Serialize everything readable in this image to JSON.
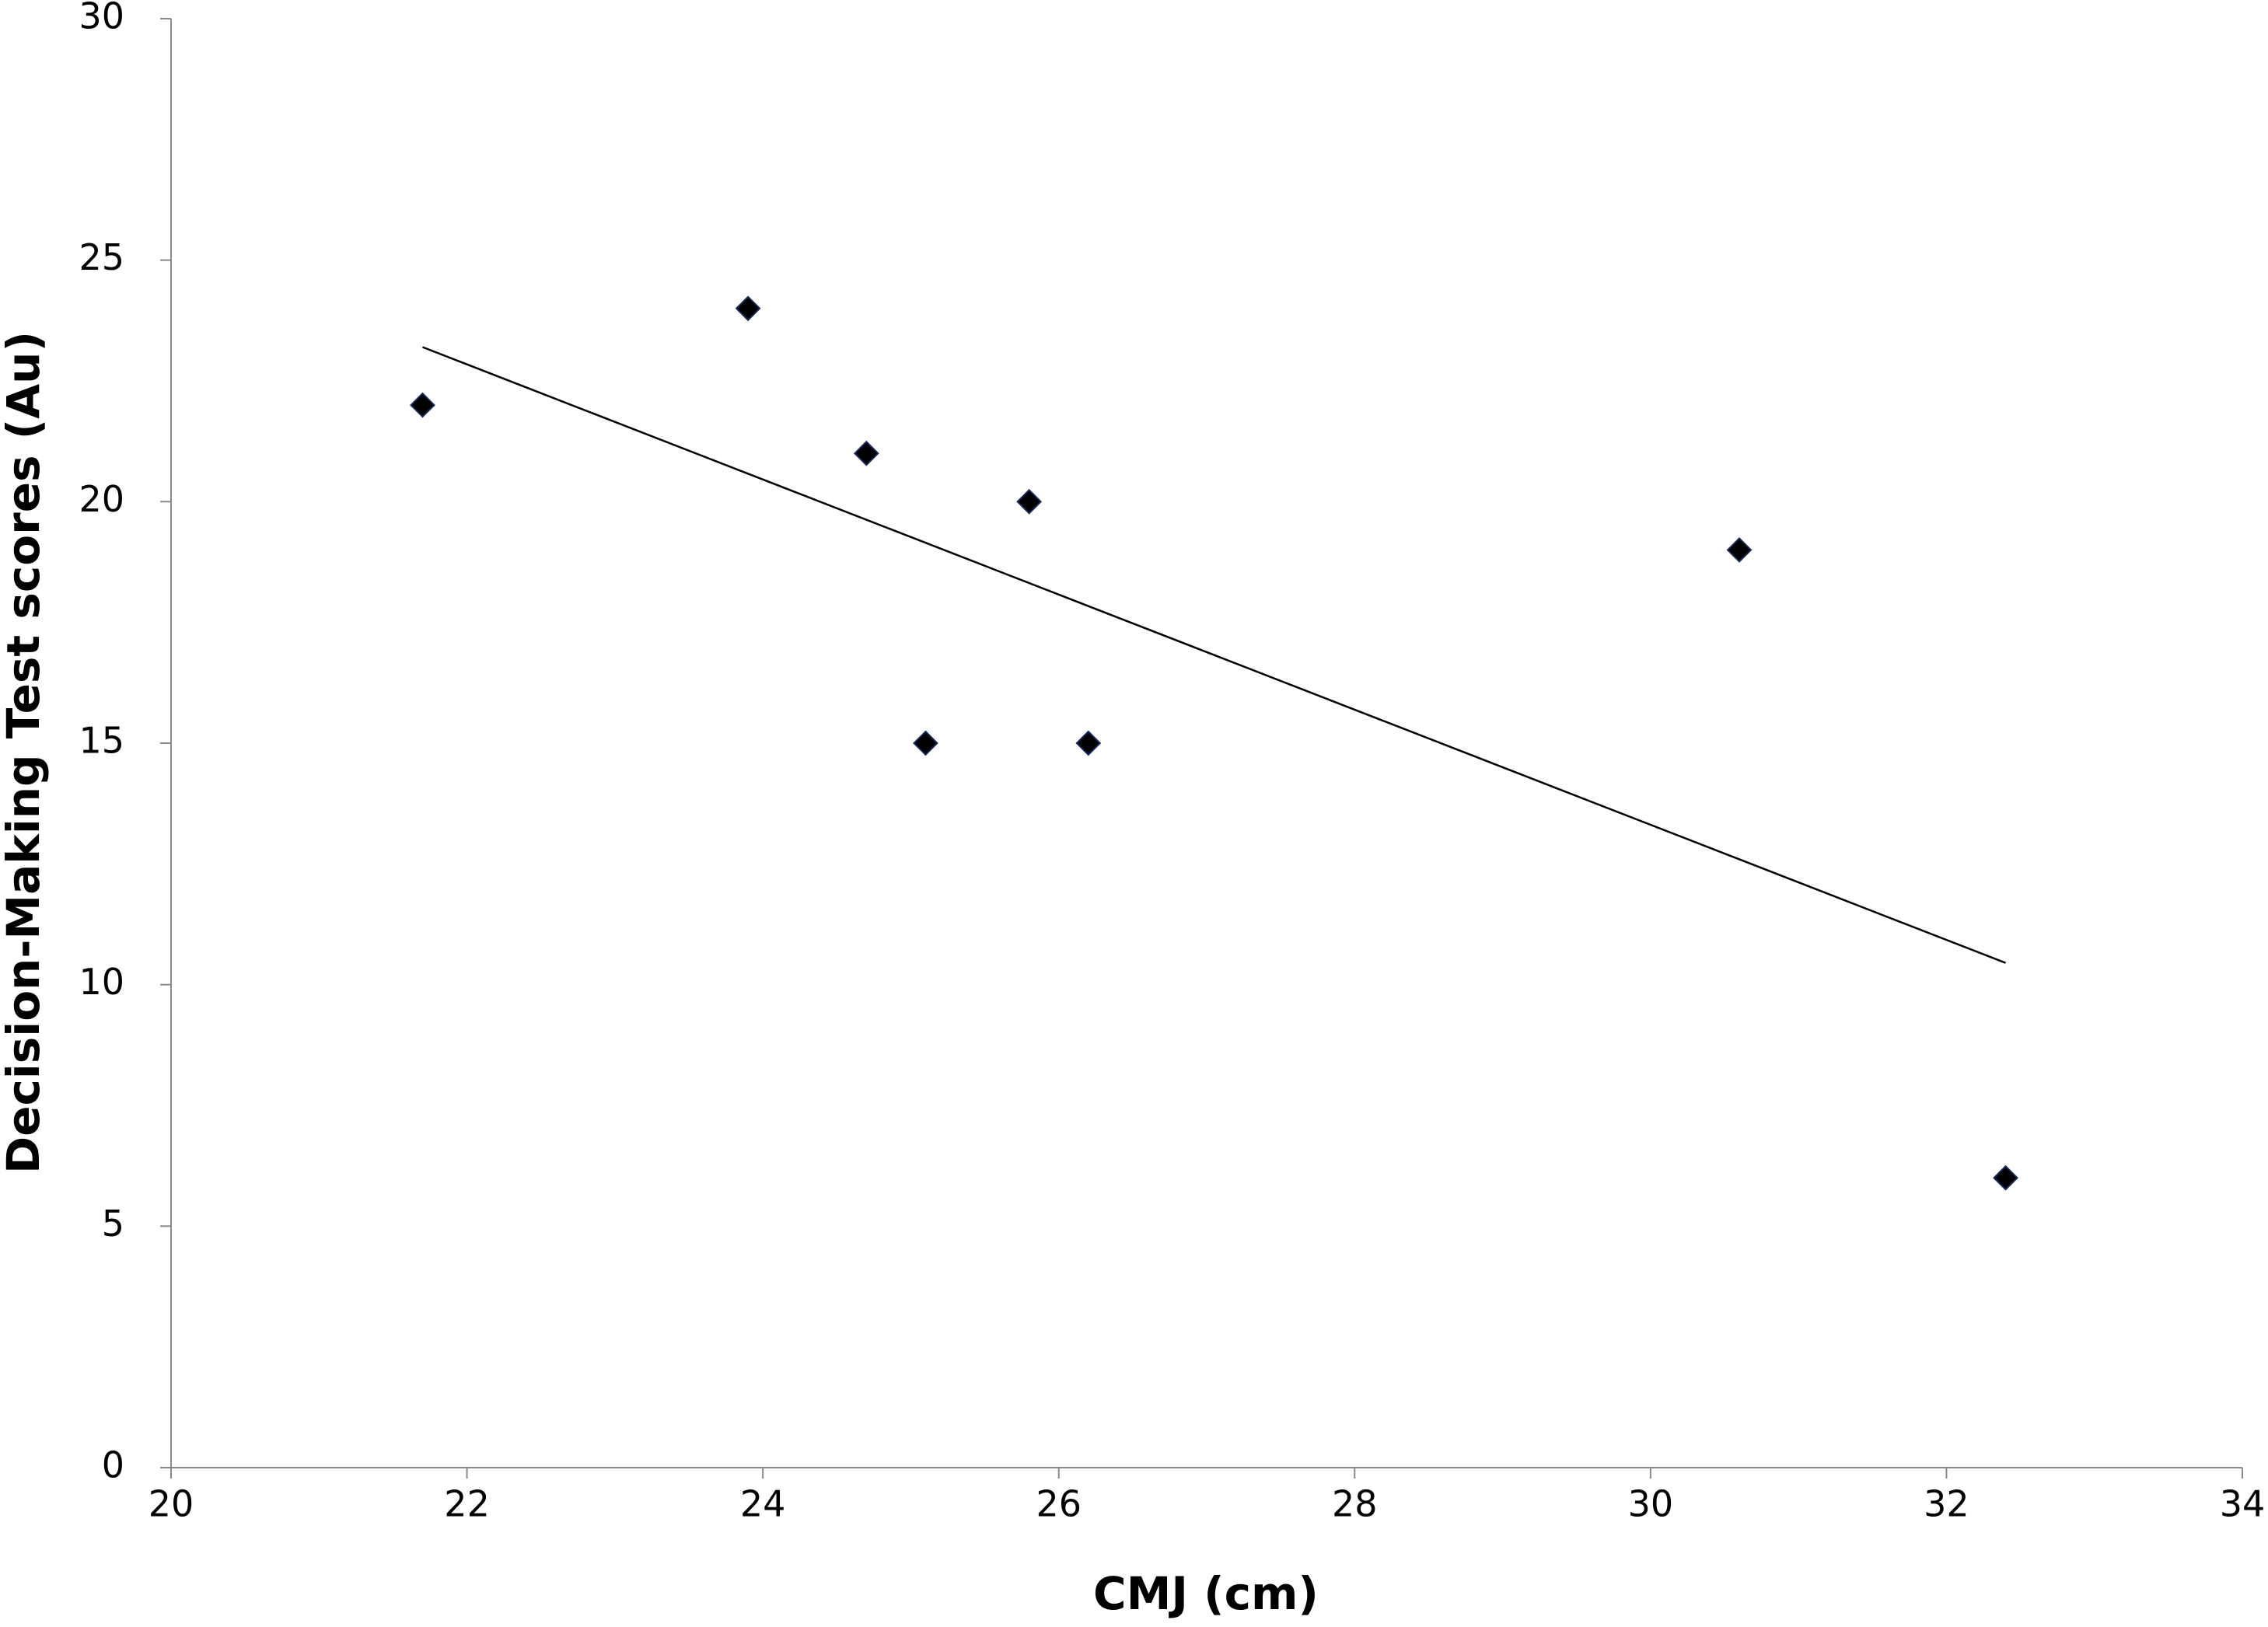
{
  "chart_data": {
    "type": "scatter",
    "x_label": "CMJ (cm)",
    "y_label": "Decision-Making Test scores (Au)",
    "x": [
      21.7,
      23.9,
      24.7,
      25.1,
      25.8,
      26.2,
      30.6,
      32.4
    ],
    "values": [
      22,
      24,
      21,
      15,
      20,
      15,
      19,
      6
    ],
    "color": "#000000",
    "trendline": {
      "x": [
        21.7,
        32.4
      ],
      "values": [
        23.2,
        10.45
      ],
      "color": "#000000"
    },
    "xlim": [
      20,
      34
    ],
    "xticks": [
      20,
      22,
      24,
      26,
      28,
      30,
      32,
      34
    ],
    "ylim": [
      0,
      30
    ],
    "yticks": [
      0,
      5,
      10,
      15,
      20,
      25,
      30
    ],
    "grid": false
  }
}
